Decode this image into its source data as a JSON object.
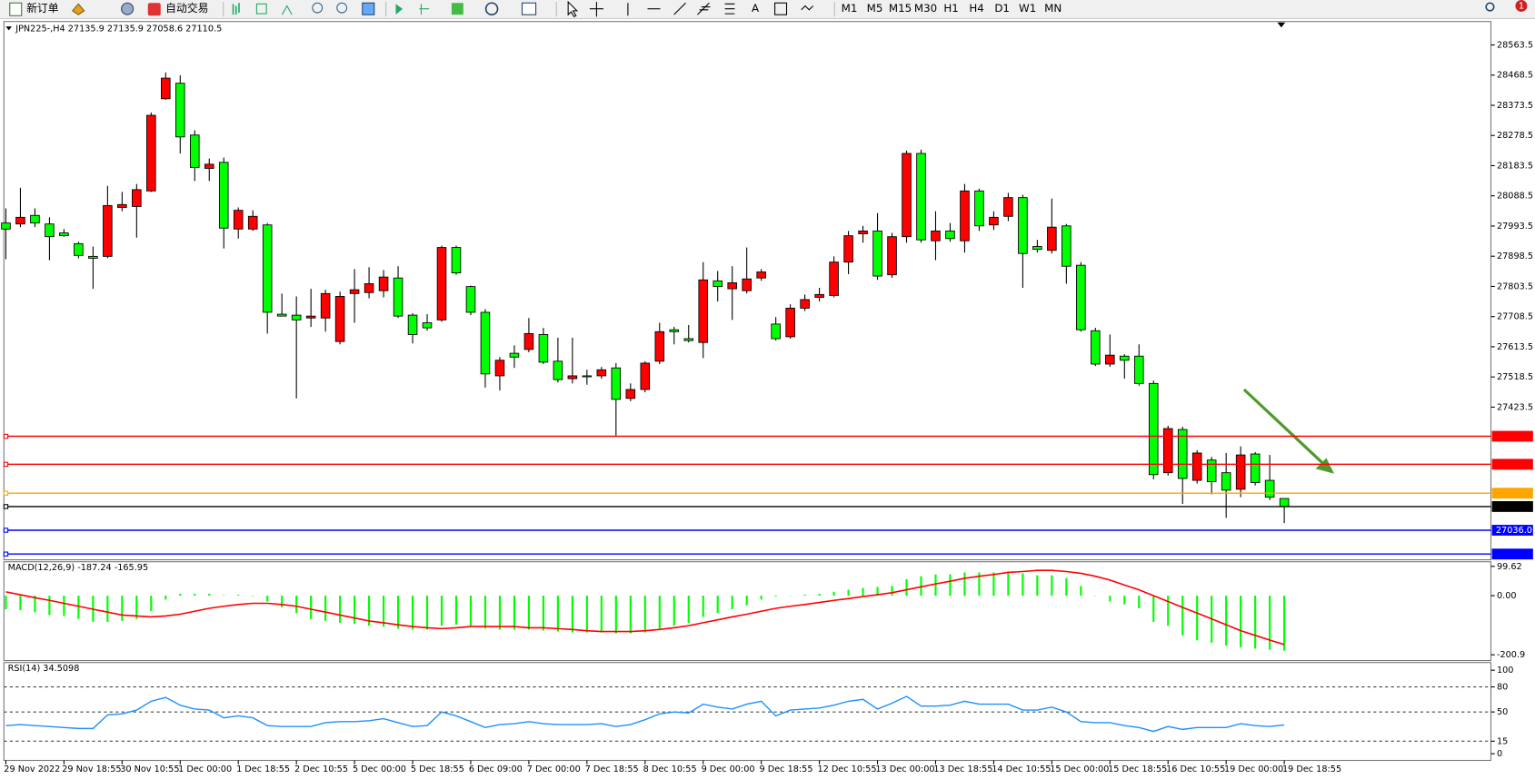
{
  "toolbar": {
    "new_order": "新订单",
    "auto_trading": "自动交易",
    "text_tool": "A",
    "timeframes": [
      "M1",
      "M5",
      "M15",
      "M30",
      "H1",
      "H4",
      "D1",
      "W1",
      "MN"
    ],
    "alerts": "1"
  },
  "chart_data": [
    {
      "type": "candlestick",
      "title": "JPN225-,H4  27135.9 27135.9 27058.6 27110.5",
      "categories": [
        "29 Nov 2022",
        null,
        null,
        null,
        "29 Nov 18:55",
        null,
        null,
        null,
        "30 Nov 10:55",
        null,
        null,
        null,
        "1 Dec 00:00",
        null,
        null,
        null,
        "1 Dec 18:55",
        null,
        null,
        null,
        "2 Dec 10:55",
        null,
        null,
        null,
        "5 Dec 00:00",
        null,
        null,
        null,
        "5 Dec 18:55",
        null,
        null,
        null,
        "6 Dec 09:00",
        null,
        null,
        null,
        "7 Dec 00:00",
        null,
        null,
        null,
        "7 Dec 18:55",
        null,
        null,
        null,
        "8 Dec 10:55",
        null,
        null,
        null,
        "9 Dec 00:00",
        null,
        null,
        null,
        "9 Dec 18:55",
        null,
        null,
        null,
        "12 Dec 10:55",
        null,
        null,
        null,
        "13 Dec 00:00",
        null,
        null,
        null,
        "13 Dec 18:55",
        null,
        null,
        null,
        "14 Dec 10:55",
        null,
        null,
        null,
        "15 Dec 00:00",
        null,
        null,
        null,
        "15 Dec 18:55",
        null,
        null,
        null,
        "16 Dec 10:55",
        null,
        null,
        null,
        "19 Dec 00:00",
        null,
        null,
        null,
        "19 Dec 18:55"
      ],
      "open": [
        28003,
        28000,
        28027,
        28000,
        27972,
        27938,
        27898,
        27898,
        28052,
        28055,
        28104,
        28394,
        28443,
        28280,
        28175,
        28194,
        27984,
        27984,
        27997,
        27716,
        27713,
        27704,
        27704,
        27630,
        27781,
        27784,
        27790,
        27830,
        27713,
        27689,
        27698,
        27926,
        27803,
        27722,
        27522,
        27593,
        27605,
        27652,
        27568,
        27513,
        27522,
        27522,
        27547,
        27451,
        27479,
        27568,
        27667,
        27639,
        27627,
        27821,
        27796,
        27790,
        27830,
        27685,
        27645,
        27735,
        27769,
        27775,
        27880,
        27969,
        27978,
        27840,
        27960,
        28222,
        27947,
        27978,
        27947,
        28104,
        27997,
        28024,
        28083,
        27929,
        27917,
        27994,
        27870,
        27664,
        27559,
        27584,
        27584,
        27498,
        27217,
        27353,
        27193,
        27257,
        27217,
        27165,
        27276,
        27193,
        27135.9
      ],
      "high": [
        28049,
        28114,
        28049,
        28021,
        27984,
        27944,
        27929,
        28120,
        28101,
        28126,
        28351,
        28477,
        28468,
        28295,
        28206,
        28209,
        28052,
        28043,
        28003,
        27781,
        27772,
        27796,
        27793,
        27787,
        27858,
        27864,
        27855,
        27867,
        27719,
        27716,
        27932,
        27932,
        27806,
        27732,
        27581,
        27618,
        27704,
        27673,
        27642,
        27642,
        27541,
        27550,
        27562,
        27498,
        27568,
        27689,
        27676,
        27682,
        27880,
        27852,
        27867,
        27926,
        27858,
        27707,
        27747,
        27778,
        27799,
        27898,
        27978,
        27994,
        28034,
        27972,
        28231,
        28234,
        28040,
        28003,
        28126,
        28111,
        28040,
        28098,
        28092,
        27950,
        28080,
        28000,
        27880,
        27673,
        27652,
        27590,
        27621,
        27507,
        27365,
        27362,
        27288,
        27267,
        27279,
        27300,
        27282,
        27273,
        27135.9
      ],
      "low": [
        27889,
        27990,
        27990,
        27886,
        27960,
        27892,
        27796,
        27892,
        28040,
        27957,
        28101,
        28391,
        28222,
        28135,
        28135,
        27923,
        27954,
        27978,
        27655,
        27710,
        27451,
        27676,
        27661,
        27621,
        27689,
        27766,
        27769,
        27704,
        27624,
        27664,
        27692,
        27840,
        27713,
        27485,
        27476,
        27547,
        27596,
        27559,
        27501,
        27498,
        27494,
        27513,
        27334,
        27442,
        27470,
        27559,
        27621,
        27627,
        27578,
        27756,
        27698,
        27781,
        27821,
        27633,
        27639,
        27726,
        27756,
        27769,
        27842,
        27941,
        27824,
        27830,
        27941,
        27941,
        27886,
        27944,
        27910,
        27978,
        27981,
        28009,
        27799,
        27910,
        27907,
        27812,
        27661,
        27553,
        27550,
        27513,
        27491,
        27196,
        27208,
        27119,
        27183,
        27149,
        27075,
        27140,
        27177,
        27131,
        27058.6
      ],
      "close": [
        27984,
        28021,
        28003,
        27960,
        27963,
        27901,
        27892,
        28058,
        28061,
        28108,
        28342,
        28459,
        28274,
        28178,
        28188,
        27987,
        28043,
        28024,
        27722,
        27710,
        27698,
        27710,
        27781,
        27772,
        27793,
        27812,
        27833,
        27710,
        27652,
        27673,
        27926,
        27846,
        27722,
        27528,
        27571,
        27581,
        27655,
        27565,
        27510,
        27522,
        27519,
        27541,
        27448,
        27479,
        27562,
        27661,
        27661,
        27633,
        27824,
        27803,
        27815,
        27827,
        27849,
        27639,
        27735,
        27762,
        27778,
        27880,
        27963,
        27978,
        27836,
        27960,
        28222,
        27950,
        27978,
        27954,
        28104,
        27994,
        28021,
        28083,
        27907,
        27920,
        27990,
        27867,
        27667,
        27559,
        27587,
        27571,
        27498,
        27211,
        27356,
        27199,
        27279,
        27189,
        27162,
        27273,
        27186,
        27140,
        27110.5
      ],
      "up_color": "#ff0000",
      "down_color": "#00ff00",
      "ylim": [
        26943,
        28631
      ],
      "yticks": [
        28563.5,
        28468.5,
        28373.5,
        28278.5,
        28183.5,
        28088.5,
        27993.5,
        27898.5,
        27803.5,
        27708.5,
        27613.5,
        27518.5,
        27423.5
      ],
      "levels": [
        {
          "value": 27331.8,
          "color": "#ff0000"
        },
        {
          "value": 27243.6,
          "color": "#ff0000"
        },
        {
          "value": 27152.7,
          "color": "#ffa500"
        },
        {
          "value": 27110.5,
          "color": "#000000"
        },
        {
          "value": 27036,
          "label": "27036.0",
          "color": "#0000ff"
        },
        {
          "value": 26961.1,
          "color": "#0000ff"
        }
      ]
    },
    {
      "type": "macd",
      "title": "MACD(12,26,9) -187.24 -165.95",
      "histogram": [
        -46.1,
        -49.4,
        -56,
        -65.9,
        -69.2,
        -79,
        -88.9,
        -88.9,
        -85.6,
        -79,
        -52.7,
        -13.2,
        6.6,
        6.6,
        6.6,
        1.6,
        3.3,
        -1.6,
        -19.8,
        -39.5,
        -59.3,
        -79,
        -85.6,
        -92.2,
        -95.5,
        -102.1,
        -105.4,
        -112,
        -115.3,
        -115.3,
        -102.1,
        -98.8,
        -102.1,
        -112,
        -115.3,
        -115.3,
        -115.3,
        -118.5,
        -121.8,
        -125.1,
        -125.1,
        -125.1,
        -128.4,
        -128.4,
        -125.1,
        -112,
        -102.1,
        -92.2,
        -72.4,
        -59.3,
        -46.1,
        -32.9,
        -13.2,
        -3.3,
        -1,
        3.3,
        6.6,
        13.2,
        19.8,
        26.3,
        29.6,
        32.9,
        56,
        65.9,
        72.4,
        72.4,
        79,
        79,
        79,
        82.3,
        75.7,
        69.2,
        69.2,
        59.3,
        32.9,
        -1,
        -19.8,
        -29.6,
        -42.8,
        -88.9,
        -102.1,
        -135,
        -152,
        -160,
        -170,
        -176,
        -180,
        -184,
        -187.24
      ],
      "signal": [
        13,
        3,
        -7,
        -16,
        -26,
        -36,
        -46,
        -56,
        -66,
        -69,
        -72,
        -69,
        -63,
        -53,
        -43,
        -36,
        -30,
        -26,
        -26,
        -30,
        -36,
        -46,
        -56,
        -66,
        -76,
        -86,
        -92,
        -99,
        -105,
        -109,
        -112,
        -109,
        -105,
        -105,
        -105,
        -105,
        -109,
        -109,
        -112,
        -115,
        -119,
        -122,
        -122,
        -122,
        -119,
        -115,
        -109,
        -102,
        -92,
        -82,
        -72,
        -63,
        -53,
        -43,
        -36,
        -30,
        -23,
        -16,
        -10,
        -3,
        3,
        10,
        20,
        30,
        40,
        49,
        59,
        66,
        72,
        79,
        82,
        86,
        86,
        82,
        76,
        66,
        53,
        36,
        20,
        0,
        -20,
        -40,
        -59,
        -79,
        -99,
        -119,
        -135,
        -151,
        -165.95
      ],
      "histogram_color": "#00ff00",
      "signal_color": "#ff0000",
      "ylim": [
        -220.6,
        112
      ],
      "yticks": [
        99.62,
        {
          "value": 0,
          "label": "0.00"
        },
        -200.9
      ]
    },
    {
      "type": "line",
      "title": "RSI(14) 34.5098",
      "values": [
        33.7,
        34.9,
        33.7,
        32.6,
        31.4,
        30.2,
        30.2,
        46.5,
        47.7,
        52.3,
        62.8,
        67.4,
        58.1,
        53.5,
        52.3,
        43,
        45.3,
        43,
        33.7,
        32.6,
        32.6,
        32.6,
        37.2,
        38.4,
        38.4,
        39.5,
        41.9,
        37.2,
        32.6,
        33.7,
        50,
        45.3,
        38.4,
        31.4,
        34.9,
        36,
        38.4,
        36,
        34.9,
        34.9,
        34.9,
        36,
        32.6,
        34.9,
        40.7,
        47.7,
        50,
        48.8,
        59.3,
        55.8,
        53.5,
        59.3,
        62.8,
        45.3,
        52.3,
        53.5,
        54.7,
        58.1,
        62.8,
        65.1,
        53.5,
        60.5,
        68.6,
        57,
        57,
        58.1,
        62.8,
        59.3,
        59.3,
        59.3,
        52.3,
        52.3,
        55.8,
        50,
        38.4,
        37.2,
        37.2,
        33.7,
        31.4,
        26.7,
        32.6,
        29.1,
        31.4,
        31.4,
        31.4,
        36,
        33.7,
        32.6,
        34.5098
      ],
      "color": "#1e90ff",
      "ylim": [
        -8,
        108
      ],
      "yticks": [
        100,
        80,
        50,
        15,
        0
      ],
      "levels": [
        80,
        50,
        15
      ]
    }
  ]
}
